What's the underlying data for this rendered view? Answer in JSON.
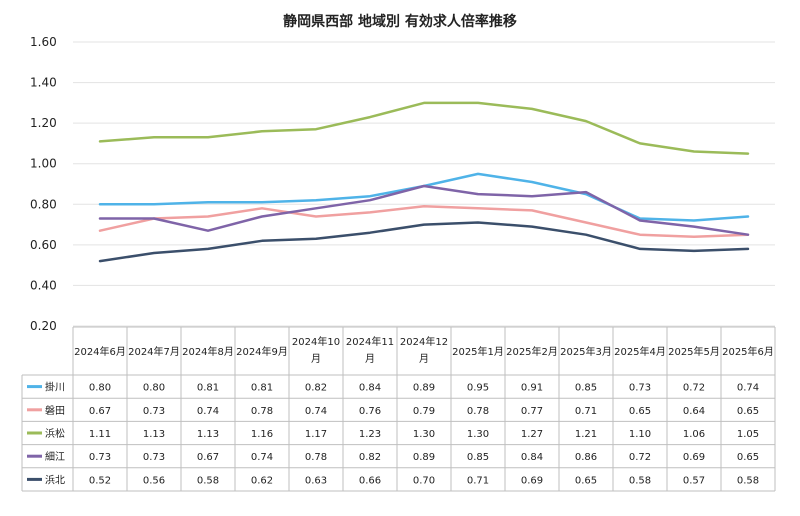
{
  "chart_data": {
    "type": "line",
    "title": "静岡県西部 地域別 有効求人倍率推移",
    "categories": [
      [
        "2024年6月"
      ],
      [
        "2024年7月"
      ],
      [
        "2024年8月"
      ],
      [
        "2024年9月"
      ],
      [
        "2024年10",
        "月"
      ],
      [
        "2024年11",
        "月"
      ],
      [
        "2024年12",
        "月"
      ],
      [
        "2025年1月"
      ],
      [
        "2025年2月"
      ],
      [
        "2025年3月"
      ],
      [
        "2025年4月"
      ],
      [
        "2025年5月"
      ],
      [
        "2025年6月"
      ]
    ],
    "ylim": [
      0.2,
      1.6
    ],
    "yticks": [
      "0.20",
      "0.40",
      "0.60",
      "0.80",
      "1.00",
      "1.20",
      "1.40",
      "1.60"
    ],
    "grid": true,
    "legend": "data-table",
    "series": [
      {
        "name": "掛川",
        "color": "#4fb3e8",
        "values": [
          0.8,
          0.8,
          0.81,
          0.81,
          0.82,
          0.84,
          0.89,
          0.95,
          0.91,
          0.85,
          0.73,
          0.72,
          0.74
        ]
      },
      {
        "name": "磐田",
        "color": "#f0a0a0",
        "values": [
          0.67,
          0.73,
          0.74,
          0.78,
          0.74,
          0.76,
          0.79,
          0.78,
          0.77,
          0.71,
          0.65,
          0.64,
          0.65
        ]
      },
      {
        "name": "浜松",
        "color": "#9bbb59",
        "values": [
          1.11,
          1.13,
          1.13,
          1.16,
          1.17,
          1.23,
          1.3,
          1.3,
          1.27,
          1.21,
          1.1,
          1.06,
          1.05
        ]
      },
      {
        "name": "細江",
        "color": "#7f64a8",
        "values": [
          0.73,
          0.73,
          0.67,
          0.74,
          0.78,
          0.82,
          0.89,
          0.85,
          0.84,
          0.86,
          0.72,
          0.69,
          0.65
        ]
      },
      {
        "name": "浜北",
        "color": "#3b4f6b",
        "values": [
          0.52,
          0.56,
          0.58,
          0.62,
          0.63,
          0.66,
          0.7,
          0.71,
          0.69,
          0.65,
          0.58,
          0.57,
          0.58
        ]
      }
    ]
  }
}
